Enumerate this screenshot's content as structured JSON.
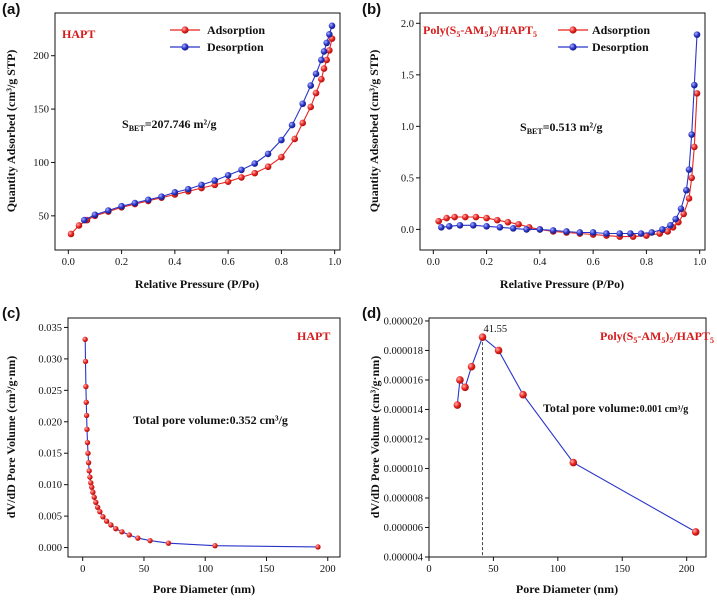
{
  "chart_data": [
    {
      "panel": "(a)",
      "type": "line",
      "sample_label": "HAPT",
      "xlabel": "Relative Pressure (P/Po)",
      "ylabel": "Quantity Adsorbed (cm³/g STP)",
      "xlim": [
        -0.05,
        1.02
      ],
      "ylim": [
        18,
        240
      ],
      "xticks": [
        0.0,
        0.2,
        0.4,
        0.6,
        0.8,
        1.0
      ],
      "xtick_labels": [
        "0.0",
        "0.2",
        "0.4",
        "0.6",
        "0.8",
        "1.0"
      ],
      "yticks": [
        50,
        100,
        150,
        200
      ],
      "ytick_labels": [
        "50",
        "100",
        "150",
        "200"
      ],
      "legend": [
        "Adsorption",
        "Desorption"
      ],
      "annotation": {
        "prefix": "S",
        "sub": "BET",
        "value": "=207.746 m²/g"
      },
      "series": [
        {
          "name": "Adsorption",
          "color": "#e8231f",
          "x": [
            0.01,
            0.04,
            0.07,
            0.1,
            0.15,
            0.2,
            0.25,
            0.3,
            0.35,
            0.4,
            0.45,
            0.5,
            0.55,
            0.6,
            0.65,
            0.7,
            0.75,
            0.8,
            0.85,
            0.88,
            0.91,
            0.93,
            0.95,
            0.96,
            0.97,
            0.98,
            0.99
          ],
          "y": [
            33,
            41,
            46,
            50,
            54,
            58,
            61,
            64,
            67,
            70,
            73,
            76,
            79,
            82,
            86,
            90,
            96,
            105,
            122,
            137,
            152,
            165,
            178,
            188,
            196,
            205,
            216
          ]
        },
        {
          "name": "Desorption",
          "color": "#2934c9",
          "x": [
            0.99,
            0.98,
            0.97,
            0.96,
            0.95,
            0.93,
            0.91,
            0.88,
            0.84,
            0.8,
            0.75,
            0.7,
            0.65,
            0.6,
            0.55,
            0.5,
            0.45,
            0.4,
            0.35,
            0.3,
            0.25,
            0.2,
            0.15,
            0.1,
            0.06
          ],
          "y": [
            228,
            220,
            212,
            204,
            196,
            183,
            172,
            155,
            135,
            121,
            108,
            99,
            93,
            88,
            83,
            79,
            75,
            72,
            68,
            65,
            62,
            59,
            55,
            51,
            46
          ]
        }
      ]
    },
    {
      "panel": "(b)",
      "type": "line",
      "sample_label": {
        "a": "Poly(S",
        "b": "5",
        "c": "-AM",
        "d": "5",
        "e": ")",
        "f": "5",
        "g": "/HAPT",
        "h": "5"
      },
      "xlabel": "Relative Pressure (P/Po)",
      "ylabel": "Quantity Adsorbed (cm³/g STP)",
      "xlim": [
        -0.05,
        1.02
      ],
      "ylim": [
        -0.2,
        2.1
      ],
      "xticks": [
        0.0,
        0.2,
        0.4,
        0.6,
        0.8,
        1.0
      ],
      "xtick_labels": [
        "0.0",
        "0.2",
        "0.4",
        "0.6",
        "0.8",
        "1.0"
      ],
      "yticks": [
        0.0,
        0.5,
        1.0,
        1.5,
        2.0
      ],
      "ytick_labels": [
        "0.0",
        "0.5",
        "1.0",
        "1.5",
        "2.0"
      ],
      "legend": [
        "Adsorption",
        "Desorption"
      ],
      "annotation": {
        "prefix": "S",
        "sub": "BET",
        "value": "=0.513 m²/g"
      },
      "series": [
        {
          "name": "Adsorption",
          "color": "#e8231f",
          "x": [
            0.02,
            0.05,
            0.08,
            0.12,
            0.16,
            0.2,
            0.24,
            0.28,
            0.32,
            0.36,
            0.4,
            0.45,
            0.5,
            0.55,
            0.6,
            0.65,
            0.7,
            0.75,
            0.8,
            0.85,
            0.88,
            0.9,
            0.92,
            0.94,
            0.96,
            0.97,
            0.98,
            0.99
          ],
          "y": [
            0.08,
            0.11,
            0.12,
            0.12,
            0.12,
            0.11,
            0.09,
            0.07,
            0.05,
            0.02,
            0.0,
            -0.02,
            -0.03,
            -0.04,
            -0.05,
            -0.06,
            -0.07,
            -0.07,
            -0.06,
            -0.04,
            -0.02,
            0.02,
            0.07,
            0.15,
            0.3,
            0.5,
            0.8,
            1.32
          ]
        },
        {
          "name": "Desorption",
          "color": "#2934c9",
          "x": [
            0.99,
            0.98,
            0.97,
            0.96,
            0.95,
            0.93,
            0.91,
            0.89,
            0.86,
            0.82,
            0.78,
            0.74,
            0.7,
            0.65,
            0.6,
            0.55,
            0.5,
            0.45,
            0.4,
            0.35,
            0.3,
            0.25,
            0.2,
            0.15,
            0.1,
            0.06,
            0.03
          ],
          "y": [
            1.89,
            1.4,
            0.92,
            0.58,
            0.38,
            0.2,
            0.1,
            0.04,
            0.0,
            -0.03,
            -0.04,
            -0.04,
            -0.04,
            -0.04,
            -0.03,
            -0.03,
            -0.02,
            -0.01,
            0.0,
            0.0,
            0.01,
            0.02,
            0.03,
            0.04,
            0.04,
            0.03,
            0.02
          ]
        }
      ]
    },
    {
      "panel": "(c)",
      "type": "line",
      "sample_label": "HAPT",
      "xlabel": "Pore Diameter (nm)",
      "ylabel": "dV/dD Pore Volume (cm³/g·nm)",
      "xlim": [
        -12,
        210
      ],
      "ylim": [
        -0.0015,
        0.0365
      ],
      "xticks": [
        0,
        50,
        100,
        150,
        200
      ],
      "xtick_labels": [
        "0",
        "50",
        "100",
        "150",
        "200"
      ],
      "yticks": [
        0.0,
        0.005,
        0.01,
        0.015,
        0.02,
        0.025,
        0.03,
        0.035
      ],
      "ytick_labels": [
        "0.000",
        "0.005",
        "0.010",
        "0.015",
        "0.020",
        "0.025",
        "0.030",
        "0.035"
      ],
      "annotation": "Total pore volume:0.352 cm³/g",
      "series": [
        {
          "name": "Pore size distribution",
          "color": "#e8231f",
          "x": [
            2,
            2.3,
            2.6,
            2.9,
            3.2,
            3.5,
            3.9,
            4.3,
            4.8,
            5.3,
            5.9,
            6.6,
            7.4,
            8.3,
            9.4,
            10.7,
            12.2,
            14,
            16.5,
            19.5,
            23,
            27,
            32,
            38,
            45,
            55,
            70,
            108,
            192
          ],
          "y": [
            0.0331,
            0.0296,
            0.0256,
            0.0231,
            0.021,
            0.0188,
            0.0167,
            0.015,
            0.0135,
            0.0122,
            0.0112,
            0.0103,
            0.0096,
            0.0088,
            0.008,
            0.0072,
            0.0064,
            0.0057,
            0.0049,
            0.0042,
            0.0036,
            0.003,
            0.0025,
            0.002,
            0.0015,
            0.0011,
            0.0007,
            0.0003,
            0.0001
          ]
        }
      ]
    },
    {
      "panel": "(d)",
      "type": "line",
      "sample_label": {
        "a": "Poly(S",
        "b": "5",
        "c": "-AM",
        "d": "5",
        "e": ")",
        "f": "5",
        "g": "/HAPT",
        "h": "5"
      },
      "xlabel": "Pore Diameter (nm)",
      "ylabel": "dV/dD Pore Volume (cm³/g·nm)",
      "xlim": [
        0,
        215
      ],
      "ylim": [
        4e-06,
        2.02e-05
      ],
      "xticks": [
        0,
        50,
        100,
        150,
        200
      ],
      "xtick_labels": [
        "0",
        "50",
        "100",
        "150",
        "200"
      ],
      "yticks": [
        4e-06,
        6e-06,
        8e-06,
        1e-05,
        1.2e-05,
        1.4e-05,
        1.6e-05,
        1.8e-05,
        2e-05
      ],
      "ytick_labels": [
        "0.000004",
        "0.000006",
        "0.000008",
        "0.000010",
        "0.000012",
        "0.000014",
        "0.000016",
        "0.000018",
        "0.000020"
      ],
      "peak_label": "41.55",
      "peak_x": 41.55,
      "annotation": {
        "label": "Total pore volume:",
        "value": "0.001 cm³/g"
      },
      "series": [
        {
          "name": "Pore size distribution",
          "color": "#e8231f",
          "x": [
            22,
            24,
            28,
            33,
            41.55,
            54,
            73,
            112,
            207
          ],
          "y": [
            1.43e-05,
            1.6e-05,
            1.55e-05,
            1.69e-05,
            1.89e-05,
            1.8e-05,
            1.5e-05,
            1.04e-05,
            5.7e-06
          ]
        }
      ]
    }
  ],
  "colors": {
    "adsorption": "#e8231f",
    "desorption": "#2934c9",
    "line": "#2934c9",
    "marker": "#e8231f"
  }
}
